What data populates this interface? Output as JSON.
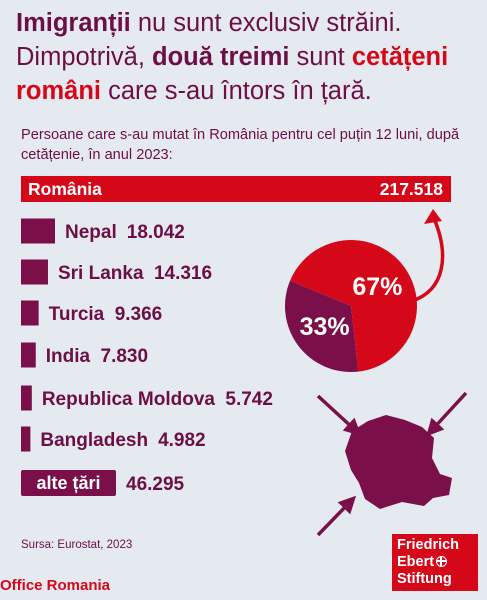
{
  "headline": {
    "part1": "Imigranții",
    "part2": " nu sunt exclusiv străini. Dimpotrivă, ",
    "part3": "două treimi",
    "part4": " sunt ",
    "part5": "cetățeni români",
    "part6": " care s-au întors în țară."
  },
  "chart_data": {
    "type": "bar",
    "title": "Persoane care s-au mutat în România pentru cel puțin 12 luni, după cetățenie, în anul 2023:",
    "categories": [
      "România",
      "Nepal",
      "Sri Lanka",
      "Turcia",
      "India",
      "Republica Moldova",
      "Bangladesh",
      "alte țări"
    ],
    "values": [
      217518,
      18042,
      14316,
      9366,
      7830,
      5742,
      4982,
      46295
    ],
    "value_labels": [
      "217.518",
      "18.042",
      "14.316",
      "9.366",
      "7.830",
      "5.742",
      "4.982",
      "46.295"
    ],
    "colors": {
      "romania": "#d5081a",
      "other": "#7a0f4a",
      "text": "#6d0f45"
    },
    "pie": {
      "type": "pie",
      "slices": [
        {
          "label": "67%",
          "value": 67,
          "color": "#d5081a"
        },
        {
          "label": "33%",
          "value": 33,
          "color": "#7a0f4a"
        }
      ]
    }
  },
  "source": "Sursa: Eurostat, 2023",
  "footer": "Office Romania",
  "logo": {
    "line1": "Friedrich",
    "line2": "Ebert",
    "line3": "Stiftung"
  }
}
